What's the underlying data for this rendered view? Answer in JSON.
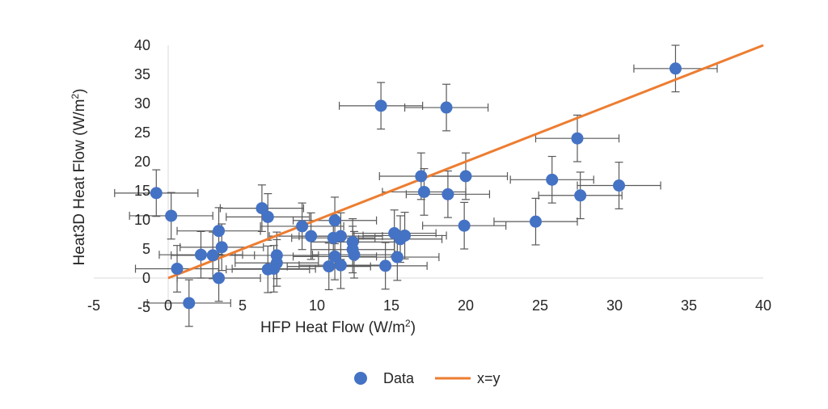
{
  "chart_data": {
    "type": "scatter",
    "xlabel": "HFP Heat Flow (W/m",
    "xlabel_sup": "2",
    "xlabel_end": ")",
    "ylabel": "Heat3D Heat Flow (W/m",
    "ylabel_sup": "2",
    "ylabel_end": ")",
    "xlim": [
      -5,
      40
    ],
    "ylim": [
      -5,
      40
    ],
    "x_ticks": [
      -5,
      0,
      5,
      10,
      15,
      20,
      25,
      30,
      35,
      40
    ],
    "y_ticks": [
      -5,
      0,
      5,
      10,
      15,
      20,
      25,
      30,
      35,
      40
    ],
    "grid": false,
    "legend_position": "bottom",
    "colors": {
      "data": "#4472c4",
      "line": "#ed7d31",
      "error_bar": "#595959"
    },
    "x_error": 2.8,
    "y_error": 4.0,
    "series": [
      {
        "name": "Data",
        "kind": "points",
        "points": [
          [
            -0.8,
            14.6
          ],
          [
            0.2,
            10.7
          ],
          [
            0.6,
            1.6
          ],
          [
            1.4,
            -4.3
          ],
          [
            2.2,
            4.0
          ],
          [
            3.0,
            3.9
          ],
          [
            3.4,
            0.0
          ],
          [
            3.4,
            8.1
          ],
          [
            3.6,
            5.3
          ],
          [
            6.3,
            12.0
          ],
          [
            6.7,
            10.5
          ],
          [
            6.7,
            1.5
          ],
          [
            7.1,
            1.6
          ],
          [
            7.3,
            3.9
          ],
          [
            7.3,
            2.6
          ],
          [
            9.0,
            8.9
          ],
          [
            9.6,
            7.2
          ],
          [
            10.8,
            2.0
          ],
          [
            11.1,
            6.9
          ],
          [
            11.2,
            3.7
          ],
          [
            11.2,
            9.9
          ],
          [
            11.6,
            7.2
          ],
          [
            11.6,
            2.2
          ],
          [
            12.4,
            6.2
          ],
          [
            12.4,
            4.9
          ],
          [
            12.5,
            4.0
          ],
          [
            14.3,
            29.6
          ],
          [
            14.6,
            2.1
          ],
          [
            15.2,
            7.7
          ],
          [
            15.4,
            3.6
          ],
          [
            15.6,
            6.7
          ],
          [
            15.9,
            7.3
          ],
          [
            17.0,
            17.5
          ],
          [
            17.2,
            14.8
          ],
          [
            18.7,
            29.3
          ],
          [
            18.8,
            14.4
          ],
          [
            19.9,
            9.0
          ],
          [
            20.0,
            17.5
          ],
          [
            24.7,
            9.7
          ],
          [
            25.8,
            16.9
          ],
          [
            27.5,
            24.0
          ],
          [
            27.7,
            14.2
          ],
          [
            30.3,
            15.9
          ],
          [
            34.1,
            36.0
          ]
        ]
      },
      {
        "name": "x=y",
        "kind": "line",
        "points": [
          [
            0,
            0
          ],
          [
            40,
            40
          ]
        ]
      }
    ]
  }
}
